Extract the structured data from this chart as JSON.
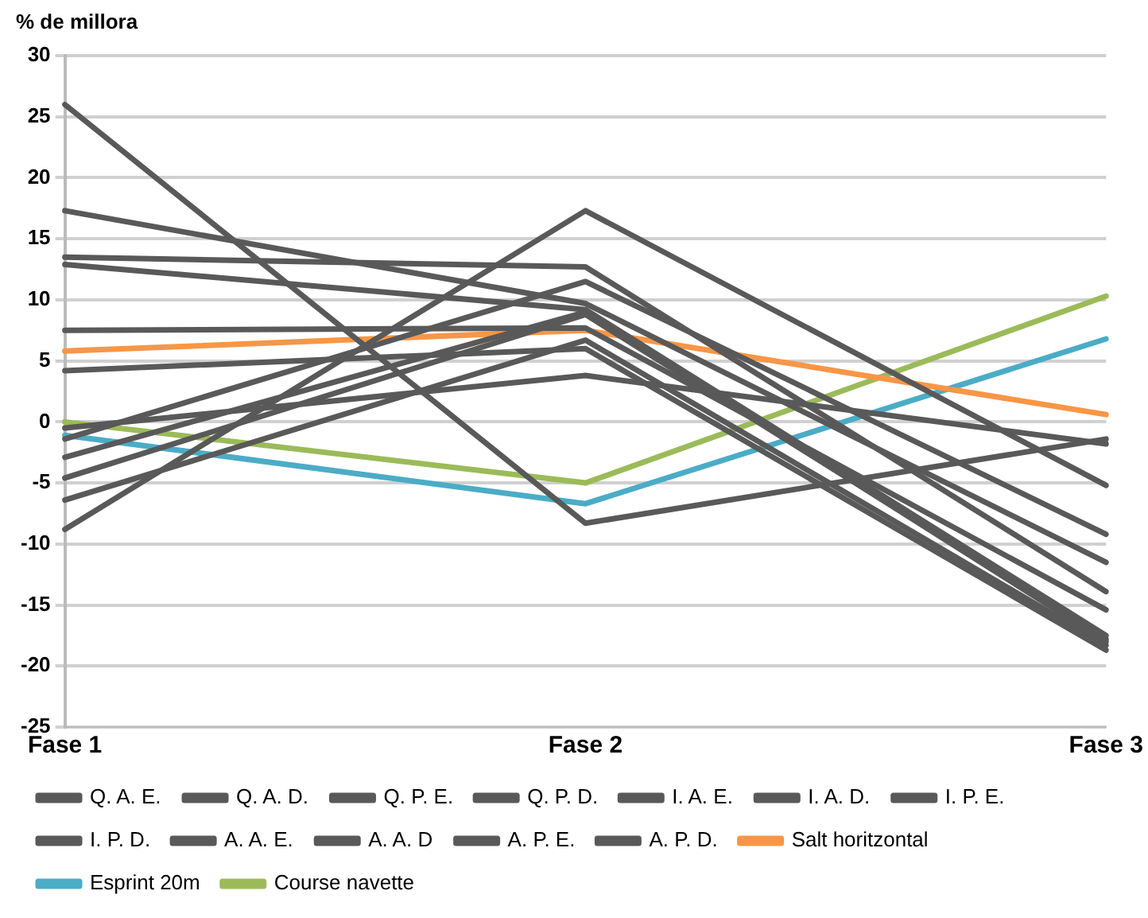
{
  "chart_data": {
    "type": "line",
    "ylabel": "% de millora",
    "categories": [
      "Fase 1",
      "Fase 2",
      "Fase 3"
    ],
    "series": [
      {
        "name": "Q. A. E.",
        "color": "#595959",
        "values": [
          26,
          -8.3,
          -1.4
        ]
      },
      {
        "name": "Q. A. D.",
        "color": "#595959",
        "values": [
          17.3,
          9.7,
          -11.5
        ]
      },
      {
        "name": "Q. P. E.",
        "color": "#595959",
        "values": [
          13.5,
          12.7,
          -13.9
        ]
      },
      {
        "name": "Q. P. D.",
        "color": "#595959",
        "values": [
          12.9,
          9.2,
          -17.5
        ]
      },
      {
        "name": "I. A. E.",
        "color": "#595959",
        "values": [
          7.5,
          7.7,
          -15.4
        ]
      },
      {
        "name": "I. A. D.",
        "color": "#595959",
        "values": [
          4.2,
          6.0,
          -18.7
        ]
      },
      {
        "name": "I. P. E.",
        "color": "#595959",
        "values": [
          -0.5,
          3.8,
          -1.8
        ]
      },
      {
        "name": "I. P. D.",
        "color": "#595959",
        "values": [
          -1.4,
          11.5,
          -9.2
        ]
      },
      {
        "name": "A. A. E.",
        "color": "#595959",
        "values": [
          -2.9,
          9.0,
          -18
        ]
      },
      {
        "name": "A. A. D",
        "color": "#595959",
        "values": [
          -4.6,
          8.8,
          -17.8
        ]
      },
      {
        "name": "A. P. E.",
        "color": "#595959",
        "values": [
          -6.4,
          6.7,
          -18.3
        ]
      },
      {
        "name": "A. P. D.",
        "color": "#595959",
        "values": [
          -8.8,
          17.3,
          -5.2
        ]
      },
      {
        "name": "Salt horitzontal",
        "color": "#f79646",
        "values": [
          5.8,
          7.5,
          0.6
        ]
      },
      {
        "name": "Esprint 20m",
        "color": "#4bacc6",
        "values": [
          -1.1,
          -6.7,
          6.8
        ]
      },
      {
        "name": "Course navette",
        "color": "#9bbb59",
        "values": [
          0.0,
          -5.0,
          10.3
        ]
      }
    ],
    "ylim": [
      -25,
      30
    ],
    "yticks": [
      -25,
      -20,
      -15,
      -10,
      -5,
      0,
      5,
      10,
      15,
      20,
      25,
      30
    ],
    "grid": "y",
    "legend": "bottom",
    "marker": "none",
    "line_style": "solid"
  }
}
